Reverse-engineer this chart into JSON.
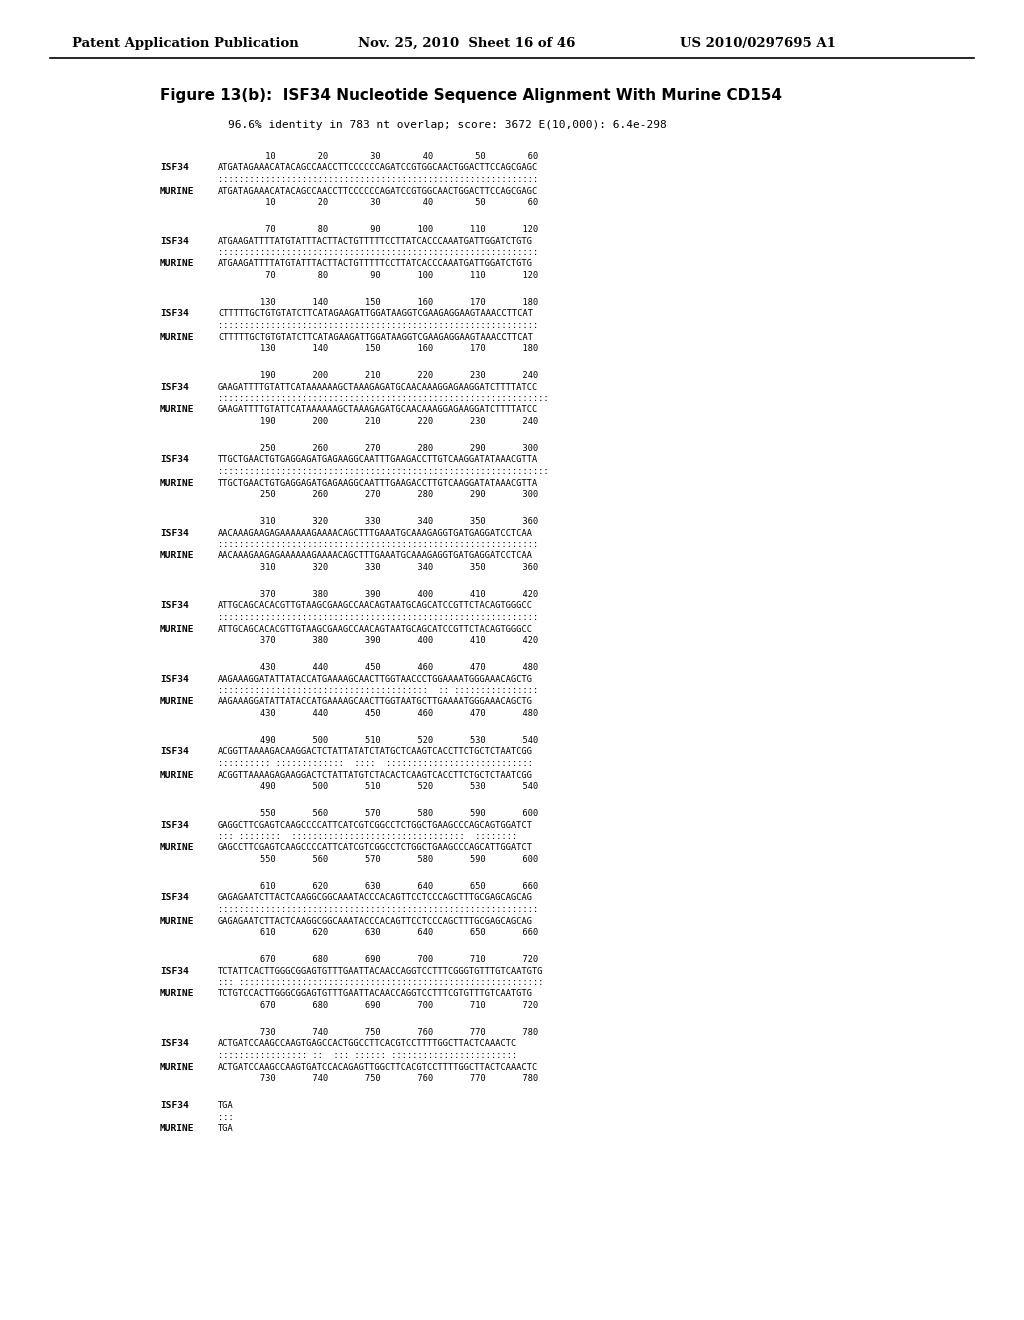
{
  "header_left": "Patent Application Publication",
  "header_mid": "Nov. 25, 2010  Sheet 16 of 46",
  "header_right": "US 2010/0297695 A1",
  "figure_title": "Figure 13(b):  ISF34 Nucleotide Sequence Alignment With Murine CD154",
  "score_line": "96.6% identity in 783 nt overlap; score: 3672 E(10,000): 6.4e-298",
  "alignment_blocks": [
    {
      "numbers_top": "         10        20        30        40        50        60",
      "isf34_seq": "ATGATAGAAACATACAGCCAACCTTCCCCCCAGATCCGTGGCAACTGGACTTCCAGCGAGC",
      "match_line": ":::::::::::::::::::::::::::::::::::::::::::::::::::::::::::::",
      "murine_seq": "ATGATAGAAACATACAGCCAACCTTCCCCCCAGATCCGTGGCAACTGGACTTCCAGCGAGC",
      "numbers_bot": "         10        20        30        40        50        60"
    },
    {
      "numbers_top": "         70        80        90       100       110       120",
      "isf34_seq": "ATGAAGATTTTATGTATTTACTTACTGTTTTTCCTTATCACCCAAATGATTGGATCTGTG",
      "match_line": ":::::::::::::::::::::::::::::::::::::::::::::::::::::::::::::",
      "murine_seq": "ATGAAGATTTTATGTATTTACTTACTGTTTTTCCTTATCACCCAAATGATTGGATCTGTG",
      "numbers_bot": "         70        80        90       100       110       120"
    },
    {
      "numbers_top": "        130       140       150       160       170       180",
      "isf34_seq": "CTTTTTGCTGTGTATCTTCATAGAAGATTGGATAAGGTCGAAGAGGAAGTAAACCTTCAT",
      "match_line": ":::::::::::::::::::::::::::::::::::::::::::::::::::::::::::::",
      "murine_seq": "CTTTTTGCTGTGTATCTTCATAGAAGATTGGATAAGGTCGAAGAGGAAGTAAACCTTCAT",
      "numbers_bot": "        130       140       150       160       170       180"
    },
    {
      "numbers_top": "        190       200       210       220       230       240",
      "isf34_seq": "GAAGATTTTGTATTCATAAAAAAGCTAAAGAGATGCAACAAAGGAGAAGGATCTTTTATCC",
      "match_line": ":::::::::::::::::::::::::::::::::::::::::::::::::::::::::::::::",
      "murine_seq": "GAAGATTTTGTATTCATAAAAAAGCTAAAGAGATGCAACAAAGGAGAAGGATCTTTTATCC",
      "numbers_bot": "        190       200       210       220       230       240"
    },
    {
      "numbers_top": "        250       260       270       280       290       300",
      "isf34_seq": "TTGCTGAACTGTGAGGAGATGAGAAGGCAATTTGAAGACCTTGTCAAGGATATAAACGTTA",
      "match_line": ":::::::::::::::::::::::::::::::::::::::::::::::::::::::::::::::",
      "murine_seq": "TTGCTGAACTGTGAGGAGATGAGAAGGCAATTTGAAGACCTTGTCAAGGATATAAACGTTA",
      "numbers_bot": "        250       260       270       280       290       300"
    },
    {
      "numbers_top": "        310       320       330       340       350       360",
      "isf34_seq": "AACAAAGAAGAGAAAAAAGAAAACAGCTTTGAAATGCAAAGAGGTGATGAGGATCCTCAA",
      "match_line": ":::::::::::::::::::::::::::::::::::::::::::::::::::::::::::::",
      "murine_seq": "AACAAAGAAGAGAAAAAAGAAAACAGCTTTGAAATGCAAAGAGGTGATGAGGATCCTCAA",
      "numbers_bot": "        310       320       330       340       350       360"
    },
    {
      "numbers_top": "        370       380       390       400       410       420",
      "isf34_seq": "ATTGCAGCACACGTTGTAAGCGAAGCCAACAGTAATGCAGCATCCGTTCTACAGTGGGCC",
      "match_line": ":::::::::::::::::::::::::::::::::::::::::::::::::::::::::::::",
      "murine_seq": "ATTGCAGCACACGTTGTAAGCGAAGCCAACAGTAATGCAGCATCCGTTCTACAGTGGGCC",
      "numbers_bot": "        370       380       390       400       410       420"
    },
    {
      "numbers_top": "        430       440       450       460       470       480",
      "isf34_seq": "AAGAAAGGATATTATACCATGAAAAGCAACTTGGTAACCCTGGAAAATGGGAAACAGCTG",
      "match_line": "::::::::::::::::::::::::::::::::::::::::  :: ::::::::::::::::",
      "murine_seq": "AAGAAAGGATATTATACCATGAAAAGCAACTTGGTAATGCTTGAAAATGGGAAACAGCTG",
      "numbers_bot": "        430       440       450       460       470       480"
    },
    {
      "numbers_top": "        490       500       510       520       530       540",
      "isf34_seq": "ACGGTTAAAAGACAAGGACTCTATTATATCTATGCTCAAGTCACCTTCTGCTCTAATCGG",
      "match_line": ":::::::::: :::::::::::::  ::::  ::::::::::::::::::::::::::::",
      "murine_seq": "ACGGTTAAAAGAGAAGGACTCTATTATGTCTACACTCAAGTCACCTTCTGCTCTAATCGG",
      "numbers_bot": "        490       500       510       520       530       540"
    },
    {
      "numbers_top": "        550       560       570       580       590       600",
      "isf34_seq": "GAGGCTTCGAGTCAAGCCCCATTCATCGTCGGCCTCTGGCTGAAGCCCAGCAGTGGATCT",
      "match_line": "::: ::::::::  :::::::::::::::::::::::::::::::::  ::::::::",
      "murine_seq": "GAGCCTTCGAGTCAAGCCCCATTCATCGTCGGCCTCTGGCTGAAGCCCAGCATTGGATCT",
      "numbers_bot": "        550       560       570       580       590       600"
    },
    {
      "numbers_top": "        610       620       630       640       650       660",
      "isf34_seq": "GAGAGAATCTTACTCAAGGCGGCAAATACCCACAGTTCCTCCCAGCTTTGCGAGCAGCAG",
      "match_line": ":::::::::::::::::::::::::::::::::::::::::::::::::::::::::::::",
      "murine_seq": "GAGAGAATCTTACTCAAGGCGGCAAATACCCACAGTTCCTCCCAGCTTTGCGAGCAGCAG",
      "numbers_bot": "        610       620       630       640       650       660"
    },
    {
      "numbers_top": "        670       680       690       700       710       720",
      "isf34_seq": "TCTATTCACTTGGGCGGAGTGTTTGAATTACAACCAGGTCCTTTCGGGTGTTTGTCAATGTG",
      "match_line": "::: ::::::::::::::::::::::::::::::::::::::::::::::::::::::::::",
      "murine_seq": "TCTGTCCACTTGGGCGGAGTGTTTGAATTACAACCAGGTCCTTTCGTGTTTGTCAATGTG",
      "numbers_bot": "        670       680       690       700       710       720"
    },
    {
      "numbers_top": "        730       740       750       760       770       780",
      "isf34_seq": "ACTGATCCAAGCCAAGTGAGCCACTGGCCTTCACGTCCTTTTGGCTTACTCAAACTC",
      "match_line": "::::::::::::::::: ::  ::: :::::: ::::::::::::::::::::::::",
      "murine_seq": "ACTGATCCAAGCCAAGTGATCCACAGAGTTGGCTTCACGTCCTTTTGGCTTACTCAAACTC",
      "numbers_bot": "        730       740       750       760       770       780"
    },
    {
      "numbers_top": "",
      "isf34_seq": "TGA",
      "match_line": ":::",
      "murine_seq": "TGA",
      "numbers_bot": ""
    }
  ]
}
